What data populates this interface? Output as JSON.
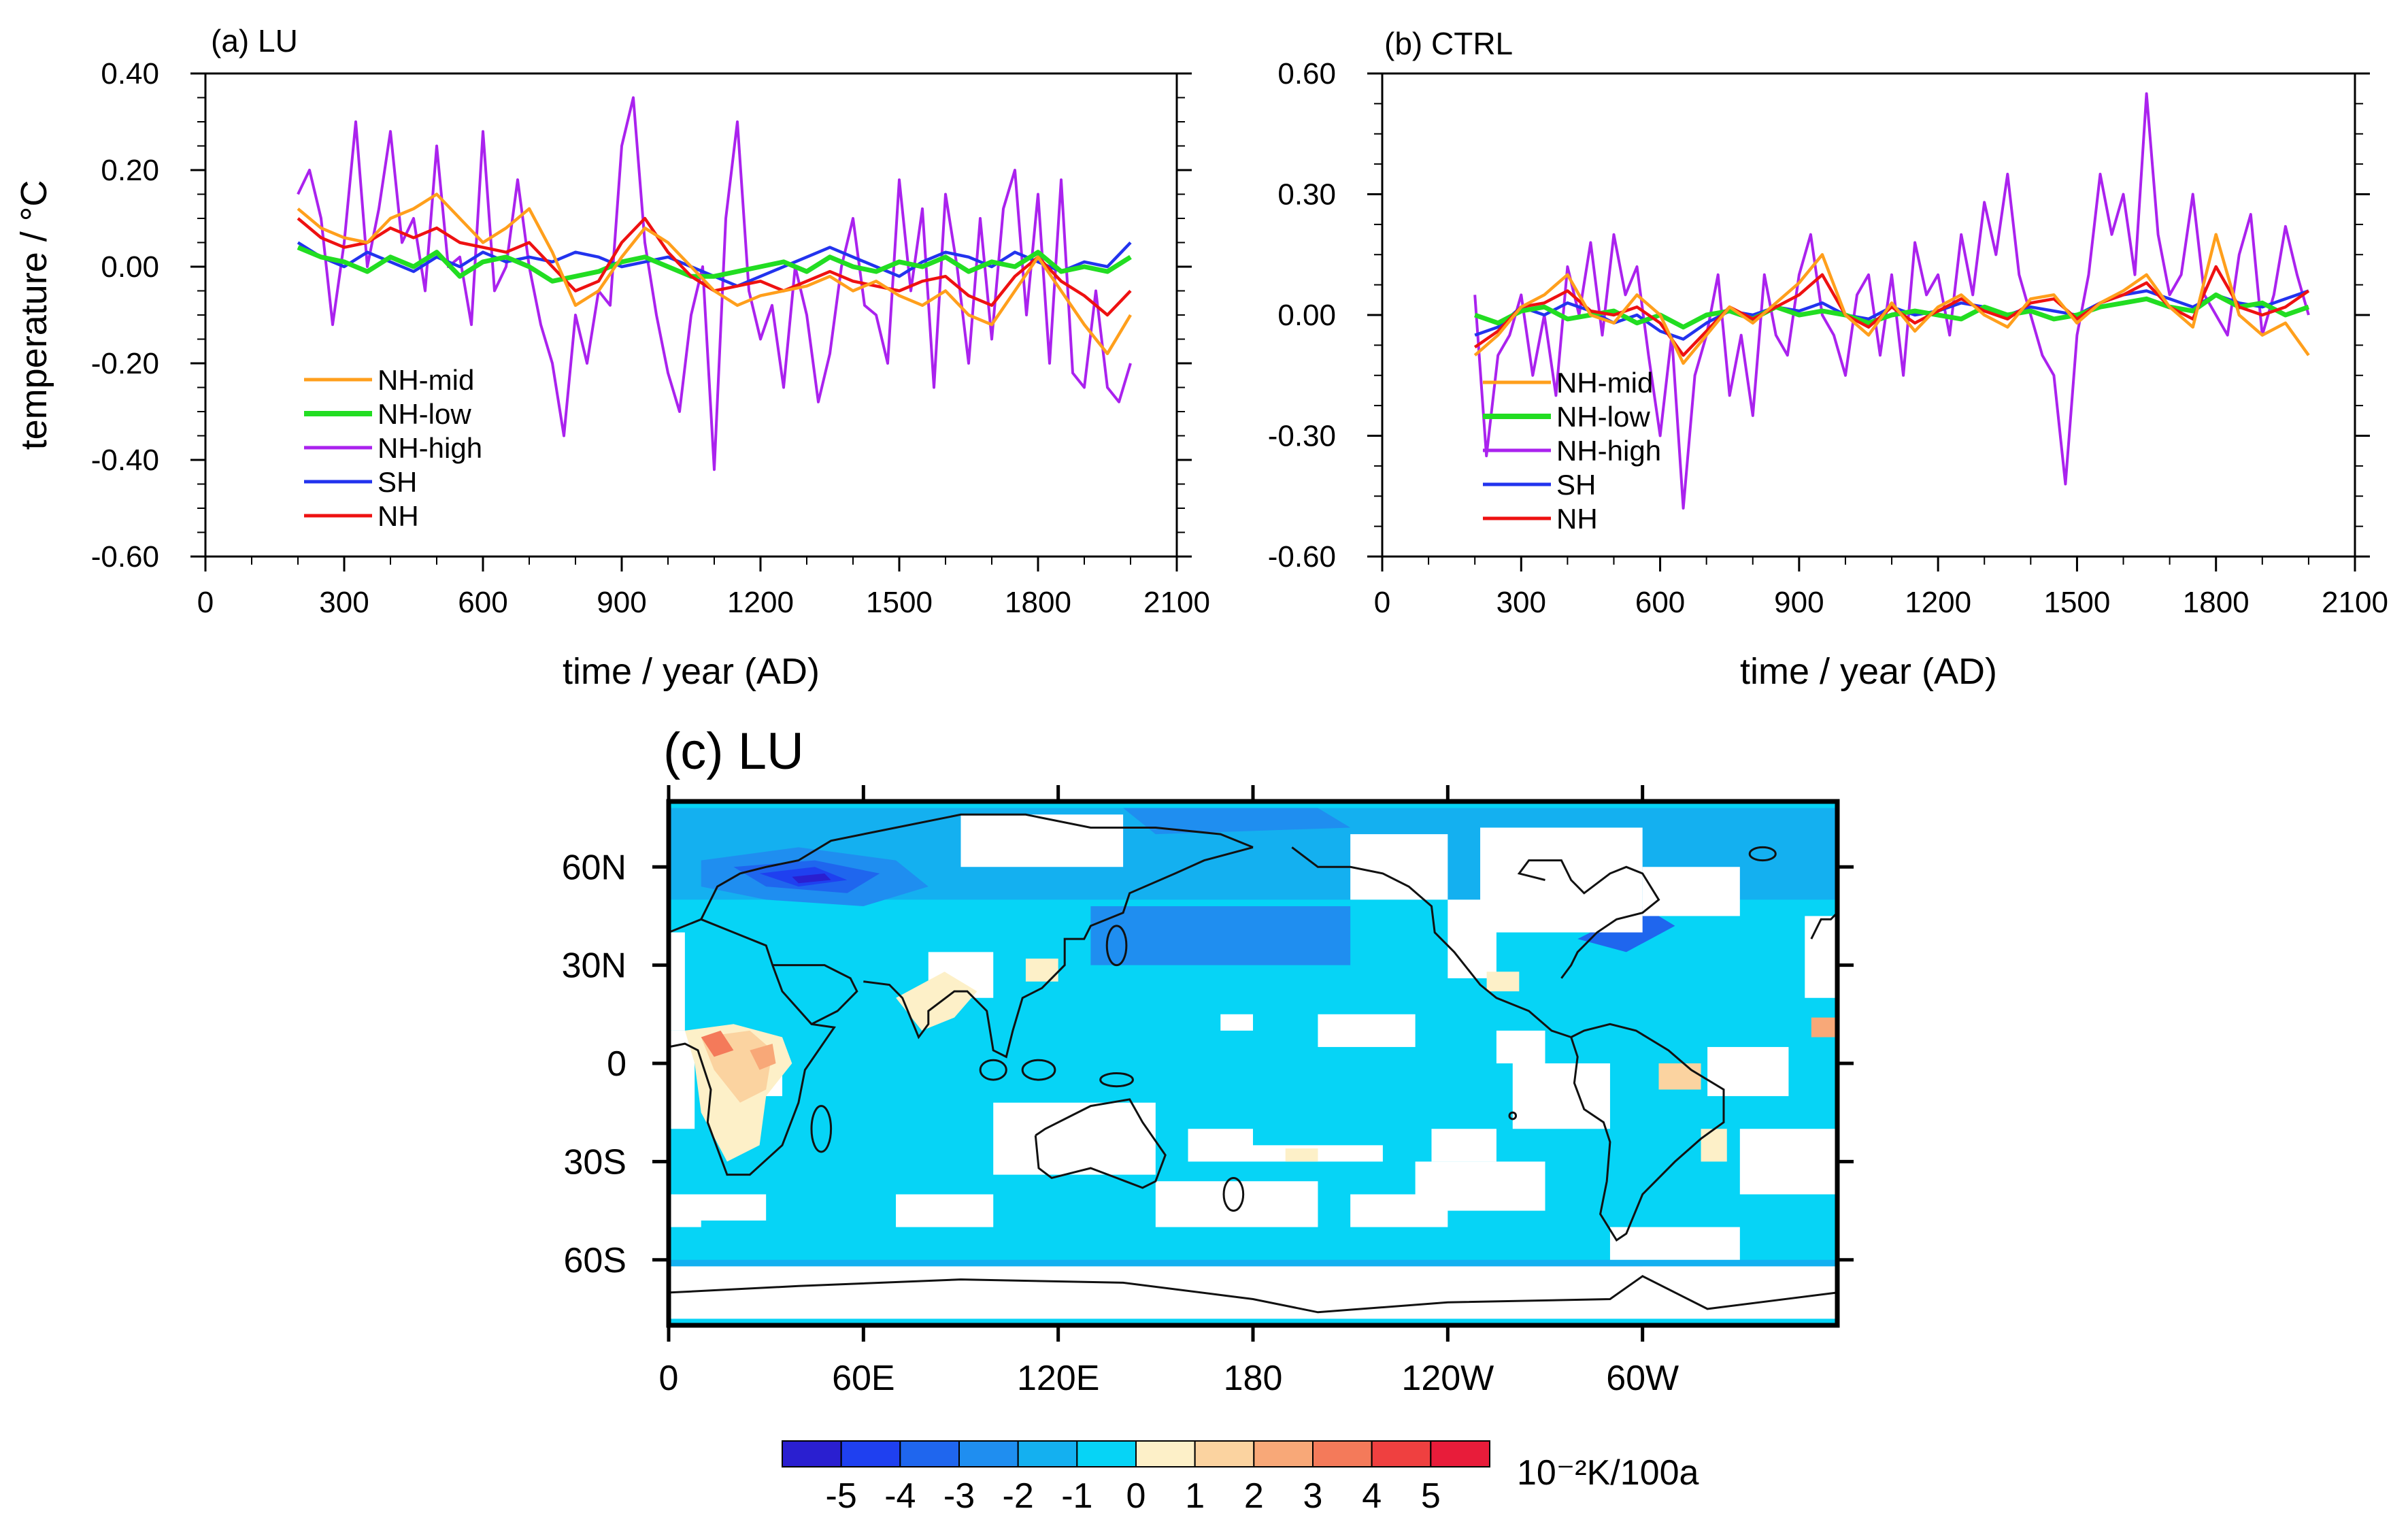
{
  "chart_data": [
    {
      "type": "line",
      "title": "(a) LU",
      "xlabel": "time / year (AD)",
      "ylabel": "temperature / °C",
      "xlim": [
        0,
        2100
      ],
      "ylim": [
        -0.6,
        0.4
      ],
      "xticks": [
        0,
        300,
        600,
        900,
        1200,
        1500,
        1800,
        2100
      ],
      "yticks": [
        0.4,
        0.2,
        0.0,
        -0.2,
        -0.4,
        -0.6
      ],
      "ytick_labels": [
        "0.40",
        "0.20",
        "0.00",
        "-0.20",
        "-0.40",
        "-0.60"
      ],
      "legend_position": "bottom-left",
      "series": [
        {
          "name": "NH-mid",
          "color": "#ff9f1c",
          "x": [
            200,
            250,
            300,
            350,
            400,
            450,
            500,
            550,
            600,
            650,
            700,
            750,
            800,
            850,
            900,
            950,
            1000,
            1050,
            1100,
            1150,
            1200,
            1250,
            1300,
            1350,
            1400,
            1450,
            1500,
            1550,
            1600,
            1650,
            1700,
            1750,
            1800,
            1850,
            1900,
            1950,
            2000
          ],
          "y": [
            0.12,
            0.08,
            0.06,
            0.05,
            0.1,
            0.12,
            0.15,
            0.1,
            0.05,
            0.08,
            0.12,
            0.03,
            -0.08,
            -0.05,
            0.02,
            0.08,
            0.05,
            0.0,
            -0.05,
            -0.08,
            -0.06,
            -0.05,
            -0.04,
            -0.02,
            -0.05,
            -0.03,
            -0.06,
            -0.08,
            -0.05,
            -0.1,
            -0.12,
            -0.05,
            0.02,
            -0.05,
            -0.12,
            -0.18,
            -0.1
          ]
        },
        {
          "name": "NH-low",
          "color": "#22dd22",
          "x": [
            200,
            250,
            300,
            350,
            400,
            450,
            500,
            550,
            600,
            650,
            700,
            750,
            800,
            850,
            900,
            950,
            1000,
            1050,
            1100,
            1150,
            1200,
            1250,
            1300,
            1350,
            1400,
            1450,
            1500,
            1550,
            1600,
            1650,
            1700,
            1750,
            1800,
            1850,
            1900,
            1950,
            2000
          ],
          "y": [
            0.04,
            0.02,
            0.01,
            -0.01,
            0.02,
            0.0,
            0.03,
            -0.02,
            0.01,
            0.02,
            0.0,
            -0.03,
            -0.02,
            -0.01,
            0.01,
            0.02,
            0.0,
            -0.02,
            -0.02,
            -0.01,
            0.0,
            0.01,
            -0.01,
            0.02,
            0.0,
            -0.01,
            0.01,
            0.0,
            0.02,
            -0.01,
            0.01,
            0.0,
            0.03,
            -0.01,
            0.0,
            -0.01,
            0.02
          ]
        },
        {
          "name": "NH-high",
          "color": "#aa22ee",
          "x": [
            200,
            225,
            250,
            275,
            300,
            325,
            350,
            375,
            400,
            425,
            450,
            475,
            500,
            525,
            550,
            575,
            600,
            625,
            650,
            675,
            700,
            725,
            750,
            775,
            800,
            825,
            850,
            875,
            900,
            925,
            950,
            975,
            1000,
            1025,
            1050,
            1075,
            1100,
            1125,
            1150,
            1175,
            1200,
            1225,
            1250,
            1275,
            1300,
            1325,
            1350,
            1375,
            1400,
            1425,
            1450,
            1475,
            1500,
            1525,
            1550,
            1575,
            1600,
            1625,
            1650,
            1675,
            1700,
            1725,
            1750,
            1775,
            1800,
            1825,
            1850,
            1875,
            1900,
            1925,
            1950,
            1975,
            2000
          ],
          "y": [
            0.15,
            0.2,
            0.1,
            -0.12,
            0.05,
            0.3,
            0.0,
            0.12,
            0.28,
            0.05,
            0.1,
            -0.05,
            0.25,
            0.0,
            0.02,
            -0.12,
            0.28,
            -0.05,
            0.0,
            0.18,
            0.0,
            -0.12,
            -0.2,
            -0.35,
            -0.1,
            -0.2,
            -0.05,
            -0.08,
            0.25,
            0.35,
            0.05,
            -0.1,
            -0.22,
            -0.3,
            -0.1,
            0.0,
            -0.42,
            0.1,
            0.3,
            -0.05,
            -0.15,
            -0.08,
            -0.25,
            0.0,
            -0.1,
            -0.28,
            -0.18,
            0.0,
            0.1,
            -0.08,
            -0.1,
            -0.2,
            0.18,
            -0.05,
            0.12,
            -0.25,
            0.15,
            0.0,
            -0.2,
            0.1,
            -0.15,
            0.12,
            0.2,
            -0.1,
            0.15,
            -0.2,
            0.18,
            -0.22,
            -0.25,
            -0.05,
            -0.25,
            -0.28,
            -0.2
          ]
        },
        {
          "name": "SH",
          "color": "#2233ee",
          "x": [
            200,
            250,
            300,
            350,
            400,
            450,
            500,
            550,
            600,
            650,
            700,
            750,
            800,
            850,
            900,
            950,
            1000,
            1050,
            1100,
            1150,
            1200,
            1250,
            1300,
            1350,
            1400,
            1450,
            1500,
            1550,
            1600,
            1650,
            1700,
            1750,
            1800,
            1850,
            1900,
            1950,
            2000
          ],
          "y": [
            0.05,
            0.02,
            0.0,
            0.03,
            0.01,
            -0.01,
            0.02,
            0.0,
            0.03,
            0.01,
            0.02,
            0.01,
            0.03,
            0.02,
            0.0,
            0.01,
            0.02,
            0.0,
            -0.02,
            -0.04,
            -0.02,
            0.0,
            0.02,
            0.04,
            0.02,
            0.0,
            -0.02,
            0.01,
            0.03,
            0.02,
            0.0,
            0.03,
            0.01,
            -0.01,
            0.01,
            0.0,
            0.05
          ]
        },
        {
          "name": "NH",
          "color": "#ee1111",
          "x": [
            200,
            250,
            300,
            350,
            400,
            450,
            500,
            550,
            600,
            650,
            700,
            750,
            800,
            850,
            900,
            950,
            1000,
            1050,
            1100,
            1150,
            1200,
            1250,
            1300,
            1350,
            1400,
            1450,
            1500,
            1550,
            1600,
            1650,
            1700,
            1750,
            1800,
            1850,
            1900,
            1950,
            2000
          ],
          "y": [
            0.1,
            0.06,
            0.04,
            0.05,
            0.08,
            0.06,
            0.08,
            0.05,
            0.04,
            0.03,
            0.05,
            0.0,
            -0.05,
            -0.03,
            0.05,
            0.1,
            0.03,
            -0.02,
            -0.05,
            -0.04,
            -0.03,
            -0.05,
            -0.03,
            -0.01,
            -0.03,
            -0.04,
            -0.05,
            -0.03,
            -0.02,
            -0.06,
            -0.08,
            -0.02,
            0.02,
            -0.03,
            -0.06,
            -0.1,
            -0.05
          ]
        }
      ]
    },
    {
      "type": "line",
      "title": "(b) CTRL",
      "xlabel": "time / year (AD)",
      "ylabel": "",
      "xlim": [
        0,
        2100
      ],
      "ylim": [
        -0.6,
        0.6
      ],
      "xticks": [
        0,
        300,
        600,
        900,
        1200,
        1500,
        1800,
        2100
      ],
      "yticks": [
        0.6,
        0.3,
        0.0,
        -0.3,
        -0.6
      ],
      "ytick_labels": [
        "0.60",
        "0.30",
        "0.00",
        "-0.30",
        "-0.60"
      ],
      "legend_position": "bottom-left",
      "series": [
        {
          "name": "NH-mid",
          "color": "#ff9f1c",
          "x": [
            200,
            250,
            300,
            350,
            400,
            450,
            500,
            550,
            600,
            650,
            700,
            750,
            800,
            850,
            900,
            950,
            1000,
            1050,
            1100,
            1150,
            1200,
            1250,
            1300,
            1350,
            1400,
            1450,
            1500,
            1550,
            1600,
            1650,
            1700,
            1750,
            1800,
            1850,
            1900,
            1950,
            2000
          ],
          "y": [
            -0.1,
            -0.05,
            0.02,
            0.05,
            0.1,
            0.0,
            -0.02,
            0.05,
            0.0,
            -0.12,
            -0.05,
            0.02,
            -0.02,
            0.03,
            0.08,
            0.15,
            0.0,
            -0.05,
            0.03,
            -0.04,
            0.02,
            0.05,
            0.0,
            -0.03,
            0.04,
            0.05,
            -0.02,
            0.03,
            0.06,
            0.1,
            0.02,
            -0.03,
            0.2,
            0.0,
            -0.05,
            -0.02,
            -0.1
          ]
        },
        {
          "name": "NH-low",
          "color": "#22dd22",
          "x": [
            200,
            250,
            300,
            350,
            400,
            450,
            500,
            550,
            600,
            650,
            700,
            750,
            800,
            850,
            900,
            950,
            1000,
            1050,
            1100,
            1150,
            1200,
            1250,
            1300,
            1350,
            1400,
            1450,
            1500,
            1550,
            1600,
            1650,
            1700,
            1750,
            1800,
            1850,
            1900,
            1950,
            2000
          ],
          "y": [
            0.0,
            -0.02,
            0.01,
            0.02,
            -0.01,
            0.0,
            0.01,
            -0.02,
            0.0,
            -0.03,
            0.0,
            0.01,
            -0.01,
            0.02,
            0.0,
            0.01,
            0.0,
            -0.02,
            0.0,
            0.01,
            0.0,
            -0.01,
            0.02,
            0.0,
            0.01,
            -0.01,
            0.0,
            0.02,
            0.03,
            0.04,
            0.02,
            0.01,
            0.05,
            0.02,
            0.03,
            0.0,
            0.02
          ]
        },
        {
          "name": "NH-high",
          "color": "#aa22ee",
          "x": [
            200,
            225,
            250,
            275,
            300,
            325,
            350,
            375,
            400,
            425,
            450,
            475,
            500,
            525,
            550,
            575,
            600,
            625,
            650,
            675,
            700,
            725,
            750,
            775,
            800,
            825,
            850,
            875,
            900,
            925,
            950,
            975,
            1000,
            1025,
            1050,
            1075,
            1100,
            1125,
            1150,
            1175,
            1200,
            1225,
            1250,
            1275,
            1300,
            1325,
            1350,
            1375,
            1400,
            1425,
            1450,
            1475,
            1500,
            1525,
            1550,
            1575,
            1600,
            1625,
            1650,
            1675,
            1700,
            1725,
            1750,
            1775,
            1800,
            1825,
            1850,
            1875,
            1900,
            1925,
            1950,
            1975,
            2000
          ],
          "y": [
            0.05,
            -0.35,
            -0.1,
            -0.05,
            0.05,
            -0.15,
            0.0,
            -0.2,
            0.12,
            0.0,
            0.18,
            -0.05,
            0.2,
            0.05,
            0.12,
            -0.1,
            -0.3,
            -0.05,
            -0.48,
            -0.15,
            -0.05,
            0.1,
            -0.2,
            -0.05,
            -0.25,
            0.1,
            -0.05,
            -0.1,
            0.1,
            0.2,
            0.0,
            -0.05,
            -0.15,
            0.05,
            0.1,
            -0.1,
            0.1,
            -0.15,
            0.18,
            0.05,
            0.1,
            -0.05,
            0.2,
            0.05,
            0.28,
            0.15,
            0.35,
            0.1,
            0.0,
            -0.1,
            -0.15,
            -0.42,
            -0.05,
            0.1,
            0.35,
            0.2,
            0.3,
            0.1,
            0.55,
            0.2,
            0.05,
            0.1,
            0.3,
            0.05,
            0.0,
            -0.05,
            0.15,
            0.25,
            -0.05,
            0.05,
            0.22,
            0.1,
            0.0
          ]
        },
        {
          "name": "SH",
          "color": "#2233ee",
          "x": [
            200,
            250,
            300,
            350,
            400,
            450,
            500,
            550,
            600,
            650,
            700,
            750,
            800,
            850,
            900,
            950,
            1000,
            1050,
            1100,
            1150,
            1200,
            1250,
            1300,
            1350,
            1400,
            1450,
            1500,
            1550,
            1600,
            1650,
            1700,
            1750,
            1800,
            1850,
            1900,
            1950,
            2000
          ],
          "y": [
            -0.05,
            -0.03,
            0.02,
            0.0,
            0.03,
            0.01,
            -0.02,
            0.0,
            -0.04,
            -0.06,
            -0.02,
            0.01,
            0.0,
            0.02,
            0.01,
            0.03,
            0.0,
            -0.01,
            0.02,
            0.0,
            0.01,
            0.03,
            0.02,
            0.0,
            0.02,
            0.01,
            0.0,
            0.03,
            0.05,
            0.06,
            0.04,
            0.02,
            0.05,
            0.03,
            0.02,
            0.04,
            0.06
          ]
        },
        {
          "name": "NH",
          "color": "#ee1111",
          "x": [
            200,
            250,
            300,
            350,
            400,
            450,
            500,
            550,
            600,
            650,
            700,
            750,
            800,
            850,
            900,
            950,
            1000,
            1050,
            1100,
            1150,
            1200,
            1250,
            1300,
            1350,
            1400,
            1450,
            1500,
            1550,
            1600,
            1650,
            1700,
            1750,
            1800,
            1850,
            1900,
            1950,
            2000
          ],
          "y": [
            -0.08,
            -0.04,
            0.02,
            0.03,
            0.06,
            0.01,
            0.0,
            0.02,
            -0.02,
            -0.1,
            -0.04,
            0.02,
            -0.01,
            0.02,
            0.05,
            0.1,
            0.0,
            -0.03,
            0.02,
            -0.02,
            0.01,
            0.04,
            0.01,
            -0.01,
            0.03,
            0.04,
            -0.01,
            0.03,
            0.05,
            0.08,
            0.02,
            -0.01,
            0.12,
            0.02,
            0.0,
            0.02,
            0.06
          ]
        }
      ]
    },
    {
      "type": "heatmap",
      "title": "(c) LU",
      "description_units": "10⁻²K/100a",
      "xticks": [
        "0",
        "60E",
        "120E",
        "180",
        "120W",
        "60W"
      ],
      "yticks": [
        "60N",
        "30N",
        "0",
        "30S",
        "60S"
      ],
      "ylim_deg": [
        -80,
        80
      ],
      "xlim_deg": [
        0,
        360
      ],
      "colorbar": {
        "levels": [
          "-5",
          "-4",
          "-3",
          "-2",
          "-1",
          "0",
          "1",
          "2",
          "3",
          "4",
          "5"
        ],
        "colors": [
          "#2a1fd0",
          "#1f40f0",
          "#1f66ee",
          "#1f8ef0",
          "#14b0f0",
          "#06d4f6",
          "#fdf0c8",
          "#fbd3a0",
          "#f8a878",
          "#f47a5a",
          "#ef4040",
          "#e81c3a"
        ],
        "units": "10⁻²K/100a"
      }
    }
  ]
}
